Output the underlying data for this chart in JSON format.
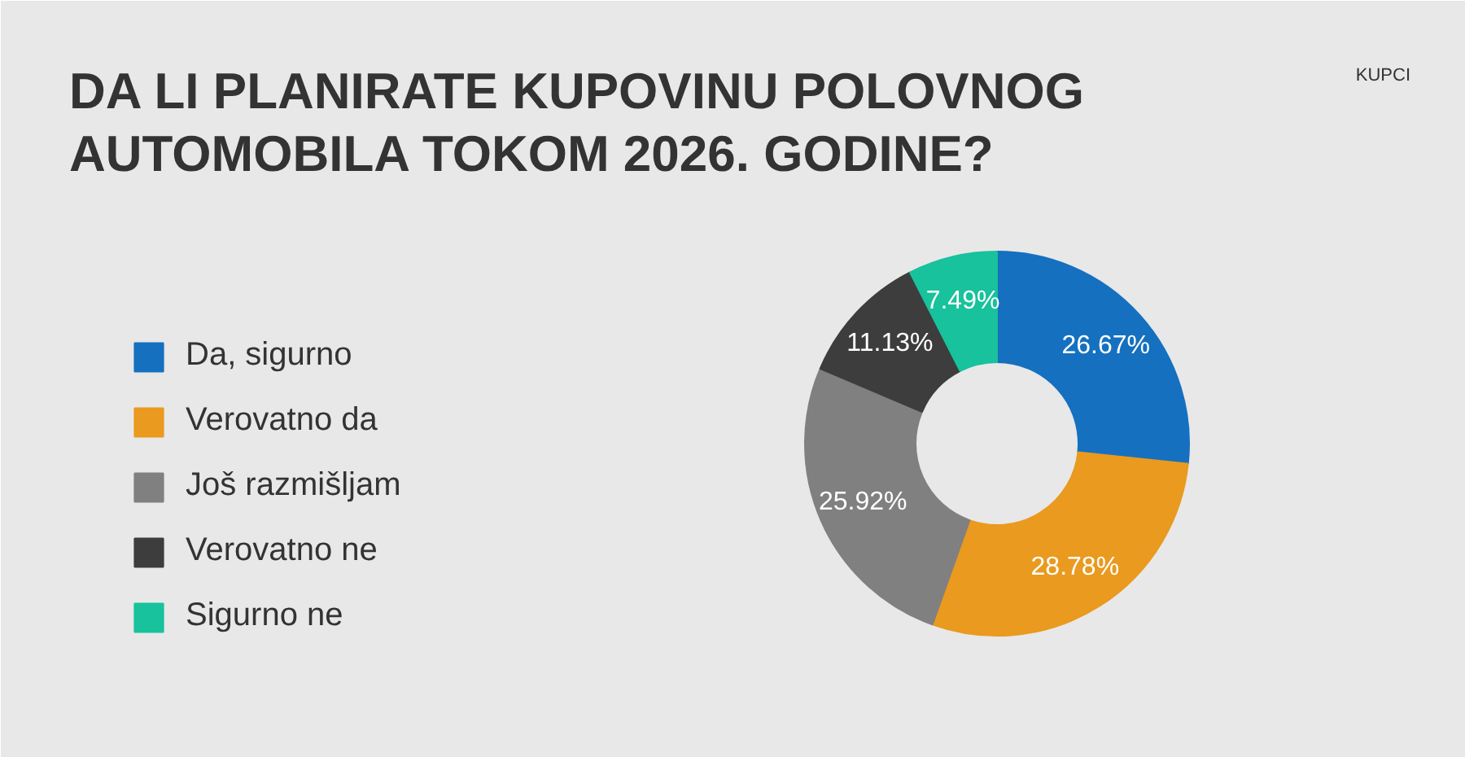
{
  "chart_data": {
    "type": "donut",
    "title": "DA LI PLANIRATE KUPOVINU POLOVNOG AUTOMOBILA TOKOM 2026. GODINE?",
    "annotations": [
      "KUPCI"
    ],
    "categories": [
      "Da, sigurno",
      "Verovatno da",
      "Još razmišljam",
      "Verovatno ne",
      "Sigurno ne"
    ],
    "values": [
      26.67,
      28.78,
      25.92,
      11.13,
      7.49
    ],
    "colors": [
      "#1570c0",
      "#e99a1f",
      "#808080",
      "#3d3d3d",
      "#17c29c"
    ],
    "value_labels": [
      "26.67%",
      "28.78%",
      "25.92%",
      "11.13%",
      "7.49%"
    ],
    "legend": "left"
  }
}
